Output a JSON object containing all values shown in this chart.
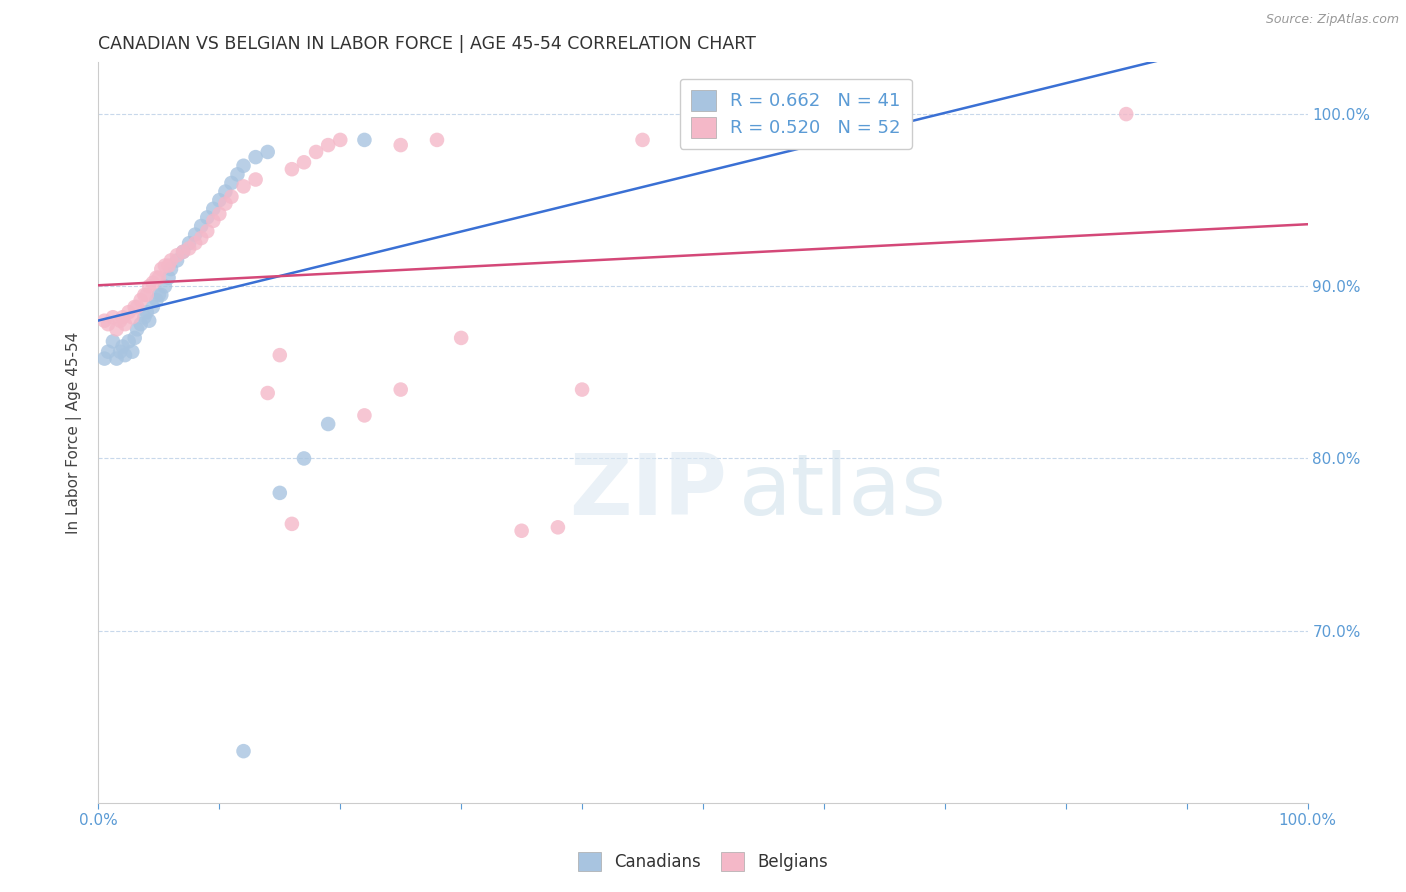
{
  "title": "CANADIAN VS BELGIAN IN LABOR FORCE | AGE 45-54 CORRELATION CHART",
  "source": "Source: ZipAtlas.com",
  "ylabel": "In Labor Force | Age 45-54",
  "xlim": [
    0.0,
    1.0
  ],
  "ylim": [
    0.6,
    1.03
  ],
  "xtick_positions": [
    0.0,
    0.1,
    0.2,
    0.3,
    0.4,
    0.5,
    0.6,
    0.7,
    0.8,
    0.9,
    1.0
  ],
  "xtick_labels_show": [
    "0.0%",
    "",
    "",
    "",
    "",
    "",
    "",
    "",
    "",
    "",
    "100.0%"
  ],
  "ytick_positions": [
    0.7,
    0.8,
    0.9,
    1.0
  ],
  "ytick_labels": [
    "70.0%",
    "80.0%",
    "90.0%",
    "100.0%"
  ],
  "canadian_color": "#a8c4e0",
  "belgian_color": "#f4b8c8",
  "canadian_line_color": "#3a70d4",
  "belgian_line_color": "#d44878",
  "R_canadian": 0.662,
  "N_canadian": 41,
  "R_belgian": 0.52,
  "N_belgian": 52,
  "legend_labels": [
    "Canadians",
    "Belgians"
  ],
  "canadian_x": [
    0.005,
    0.008,
    0.012,
    0.015,
    0.018,
    0.02,
    0.022,
    0.025,
    0.028,
    0.03,
    0.032,
    0.035,
    0.038,
    0.04,
    0.042,
    0.045,
    0.048,
    0.05,
    0.052,
    0.055,
    0.058,
    0.06,
    0.065,
    0.07,
    0.075,
    0.08,
    0.085,
    0.09,
    0.095,
    0.1,
    0.105,
    0.11,
    0.115,
    0.12,
    0.13,
    0.14,
    0.15,
    0.17,
    0.19,
    0.22,
    0.12
  ],
  "canadian_y": [
    0.858,
    0.862,
    0.868,
    0.858,
    0.862,
    0.865,
    0.86,
    0.868,
    0.862,
    0.87,
    0.875,
    0.878,
    0.882,
    0.885,
    0.88,
    0.888,
    0.892,
    0.895,
    0.895,
    0.9,
    0.905,
    0.91,
    0.915,
    0.92,
    0.925,
    0.93,
    0.935,
    0.94,
    0.945,
    0.95,
    0.955,
    0.96,
    0.965,
    0.97,
    0.975,
    0.978,
    0.78,
    0.8,
    0.82,
    0.985,
    0.63
  ],
  "belgian_x": [
    0.005,
    0.008,
    0.012,
    0.015,
    0.018,
    0.02,
    0.022,
    0.025,
    0.028,
    0.03,
    0.032,
    0.035,
    0.038,
    0.04,
    0.042,
    0.045,
    0.048,
    0.05,
    0.052,
    0.055,
    0.058,
    0.06,
    0.065,
    0.07,
    0.075,
    0.08,
    0.085,
    0.09,
    0.095,
    0.1,
    0.105,
    0.11,
    0.12,
    0.13,
    0.14,
    0.15,
    0.16,
    0.17,
    0.18,
    0.19,
    0.2,
    0.22,
    0.25,
    0.28,
    0.3,
    0.35,
    0.4,
    0.45,
    0.38,
    0.25,
    0.16,
    0.85
  ],
  "belgian_y": [
    0.88,
    0.878,
    0.882,
    0.875,
    0.88,
    0.882,
    0.878,
    0.885,
    0.882,
    0.888,
    0.888,
    0.892,
    0.895,
    0.895,
    0.9,
    0.902,
    0.905,
    0.905,
    0.91,
    0.912,
    0.912,
    0.915,
    0.918,
    0.92,
    0.922,
    0.925,
    0.928,
    0.932,
    0.938,
    0.942,
    0.948,
    0.952,
    0.958,
    0.962,
    0.838,
    0.86,
    0.968,
    0.972,
    0.978,
    0.982,
    0.985,
    0.825,
    0.982,
    0.985,
    0.87,
    0.758,
    0.84,
    0.985,
    0.76,
    0.84,
    0.762,
    1.0
  ]
}
